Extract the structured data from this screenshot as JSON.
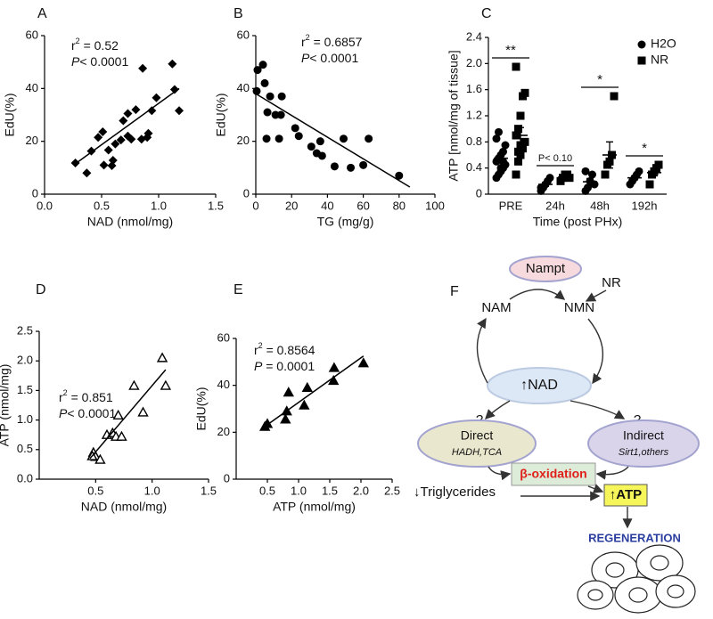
{
  "chart_data": [
    {
      "type": "scatter",
      "title": "A",
      "xlabel": "NAD (nmol/mg)",
      "ylabel": "EdU(%)",
      "marker": "diamond",
      "color": "#000000",
      "x": [
        0.27,
        0.37,
        0.41,
        0.47,
        0.51,
        0.52,
        0.56,
        0.59,
        0.6,
        0.62,
        0.67,
        0.69,
        0.73,
        0.73,
        0.76,
        0.8,
        0.85,
        0.86,
        0.9,
        0.91,
        0.94,
        0.98,
        1.12,
        1.14,
        1.18
      ],
      "values": [
        11.8,
        8,
        16.3,
        21.5,
        23.6,
        11,
        16.7,
        10.8,
        12.8,
        19,
        20.5,
        27.8,
        30.5,
        22,
        20.8,
        32,
        20.8,
        47.6,
        21.5,
        23,
        31.6,
        36.5,
        49.3,
        39.6,
        31.6
      ],
      "fit": {
        "x": [
          0.27,
          1.18
        ],
        "y": [
          11.5,
          40
        ]
      },
      "annotations": [
        [
          {
            "text": "r"
          },
          {
            "text": "2",
            "sup": true
          },
          {
            "text": " = 0.52"
          }
        ],
        [
          {
            "text": "P",
            "italic": true
          },
          {
            "text": "< 0.0001"
          }
        ]
      ],
      "xlim": [
        0,
        1.5
      ],
      "xticks": [
        {
          "value": 0,
          "label": "0.0"
        },
        0.5,
        {
          "value": 1,
          "label": "1.0"
        },
        1.5
      ],
      "ylim": [
        0,
        60
      ],
      "yticks": [
        0,
        20,
        40,
        60
      ]
    },
    {
      "type": "scatter",
      "title": "B",
      "xlabel": "TG (mg/g)",
      "ylabel": "EdU(%)",
      "marker": "circle",
      "color": "#000000",
      "x": [
        0.5,
        1,
        4,
        5,
        6.5,
        6,
        8,
        11,
        13,
        14.5,
        14,
        22,
        24,
        31,
        34,
        36,
        37,
        44,
        49,
        53,
        63,
        60,
        80
      ],
      "values": [
        39,
        47,
        49,
        42,
        31,
        21,
        37,
        30,
        21,
        37,
        30,
        25,
        22,
        18,
        15.5,
        20,
        14.5,
        10.5,
        21,
        10,
        21,
        11,
        7
      ],
      "fit": {
        "x": [
          0,
          86
        ],
        "y": [
          38,
          2.7
        ]
      },
      "annotations": [
        [
          {
            "text": "r"
          },
          {
            "text": "2",
            "sup": true
          },
          {
            "text": " = 0.6857"
          }
        ],
        [
          {
            "text": "P",
            "italic": true
          },
          {
            "text": "< 0.0001"
          }
        ]
      ],
      "xlim": [
        0,
        100
      ],
      "xticks": [
        0,
        20,
        40,
        60,
        80,
        100
      ],
      "ylim": [
        0,
        60
      ],
      "yticks": [
        0,
        20,
        40,
        60
      ]
    },
    {
      "type": "dot",
      "title": "C",
      "xlabel": "Time (post PHx)",
      "ylabel": "ATP [nmol/mg of tissue]",
      "legend": "upper right",
      "categories": [
        "PRE",
        "24h",
        "48h",
        "192h"
      ],
      "significance": [
        "**",
        "P< 0.10",
        "*",
        "*"
      ],
      "series": [
        {
          "name": "H2O",
          "marker": "circle",
          "color": "#000000",
          "values": [
            0.55,
            0.15,
            0.19,
            0.25
          ],
          "errors": [
            0.07,
            0.03,
            0.05,
            0.03
          ],
          "points": [
            [
              0.25,
              0.3,
              0.35,
              0.4,
              0.45,
              0.5,
              0.55,
              0.6,
              0.65,
              0.75,
              0.85,
              0.95,
              0.4,
              0.5
            ],
            [
              0.05,
              0.1,
              0.15,
              0.2,
              0.25,
              0.1
            ],
            [
              0.05,
              0.1,
              0.2,
              0.3,
              0.15,
              0.35
            ],
            [
              0.15,
              0.2,
              0.25,
              0.3,
              0.35
            ]
          ]
        },
        {
          "name": "NR",
          "marker": "square",
          "color": "#000000",
          "values": [
            0.9,
            0.26,
            0.6,
            0.33
          ],
          "errors": [
            0.12,
            0.02,
            0.2,
            0.05
          ],
          "points": [
            [
              0.3,
              0.5,
              0.6,
              0.7,
              0.8,
              0.9,
              1.0,
              1.2,
              1.5,
              1.55,
              1.95,
              0.65,
              0.75
            ],
            [
              0.2,
              0.25,
              0.3,
              0.3,
              0.25
            ],
            [
              0.3,
              0.45,
              0.5,
              0.6,
              1.5
            ],
            [
              0.15,
              0.3,
              0.35,
              0.4,
              0.45
            ]
          ]
        }
      ],
      "ylim": [
        0,
        2.4
      ],
      "yticks": [
        0,
        0.4,
        0.8,
        1.2,
        1.6,
        {
          "value": 2,
          "label": "2.0"
        },
        2.4
      ]
    },
    {
      "type": "scatter",
      "title": "D",
      "xlabel": "NAD (nmol/mg)",
      "ylabel": "ATP (nmol/mg)",
      "marker": "triangle-open",
      "color": "#000000",
      "x": [
        0.48,
        0.5,
        0.47,
        0.54,
        0.6,
        0.65,
        0.68,
        0.7,
        0.73,
        0.84,
        0.92,
        1.09,
        1.12
      ],
      "values": [
        0.45,
        0.38,
        0.39,
        0.33,
        0.75,
        0.78,
        0.72,
        1.08,
        0.72,
        1.58,
        1.13,
        2.05,
        1.58
      ],
      "fit": {
        "x": [
          0.45,
          1.12
        ],
        "y": [
          0.35,
          1.85
        ]
      },
      "annotations": [
        [
          {
            "text": "r"
          },
          {
            "text": "2",
            "sup": true
          },
          {
            "text": " = 0.851"
          }
        ],
        [
          {
            "text": "P",
            "italic": true
          },
          {
            "text": "< 0.0001"
          }
        ]
      ],
      "xlim": [
        0,
        1.5
      ],
      "xticks": [
        0.5,
        {
          "value": 1,
          "label": "1.0"
        },
        1.5
      ],
      "ylim": [
        0,
        2.5
      ],
      "yticks": [
        {
          "value": 0,
          "label": "0.0"
        },
        0.5,
        {
          "value": 1,
          "label": "1.0"
        },
        1.5,
        {
          "value": 2,
          "label": "2.0"
        },
        2.5
      ]
    },
    {
      "type": "scatter",
      "title": "E",
      "xlabel": "ATP (nmol/mg)",
      "ylabel": "EdU(%)",
      "marker": "triangle",
      "color": "#000000",
      "x": [
        0.46,
        0.5,
        0.79,
        0.81,
        0.84,
        1.09,
        1.14,
        1.56,
        1.57,
        2.04
      ],
      "values": [
        22.4,
        23.6,
        25.5,
        29,
        37,
        31.5,
        39,
        42,
        47.5,
        49.5
      ],
      "fit": {
        "x": [
          0.4,
          2.04
        ],
        "y": [
          21.3,
          52.5
        ]
      },
      "annotations": [
        [
          {
            "text": "r"
          },
          {
            "text": "2",
            "sup": true
          },
          {
            "text": " = 0.8564"
          }
        ],
        [
          {
            "text": "P",
            "italic": true
          },
          {
            "text": " = 0.0001"
          }
        ]
      ],
      "xlim": [
        0,
        2.5
      ],
      "xticks": [
        0.5,
        {
          "value": 1,
          "label": "1.0"
        },
        1.5,
        {
          "value": 2,
          "label": "2.0"
        },
        2.5
      ],
      "ylim": [
        0,
        60
      ],
      "yticks": [
        0,
        20,
        40,
        60
      ]
    }
  ],
  "diagram": {
    "label": "F",
    "nampt": "Nampt",
    "nr": "NR",
    "nam": "NAM",
    "nmn": "NMN",
    "nad": "↑NAD",
    "question_left": "?",
    "question_right": "?",
    "direct": "Direct",
    "direct_detail": "HADH,TCA",
    "indirect": "Indirect",
    "indirect_detail": "Sirt1,others",
    "beta_oxidation": "β-oxidation",
    "triglycerides": "↓Triglycerides",
    "atp": "↑ATP",
    "regeneration": "REGENERATION"
  }
}
